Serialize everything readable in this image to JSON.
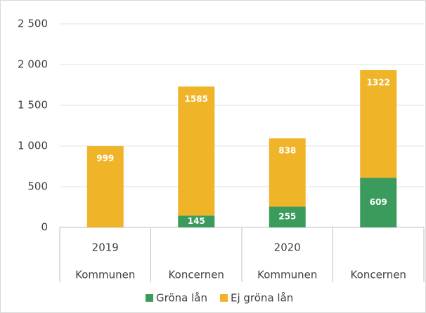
{
  "chart_data": {
    "type": "stacked_bar",
    "categories": [
      "Kommunen",
      "Koncernen",
      "Kommunen",
      "Koncernen"
    ],
    "groups": [
      "2019",
      null,
      "2020",
      null
    ],
    "series": [
      {
        "name": "Gröna lån",
        "color": "#3a9b5c",
        "values": [
          null,
          145,
          255,
          609
        ]
      },
      {
        "name": "Ej gröna lån",
        "color": "#f0b429",
        "values": [
          999,
          1585,
          838,
          1322
        ]
      }
    ],
    "ylim": [
      0,
      2500
    ],
    "yticks": [
      0,
      500,
      {
        "value": 1000,
        "label": "1 000"
      },
      {
        "value": 1500,
        "label": "1 500"
      },
      {
        "value": 2000,
        "label": "2 000"
      },
      {
        "value": 2500,
        "label": "2 500"
      }
    ],
    "grid": true
  }
}
